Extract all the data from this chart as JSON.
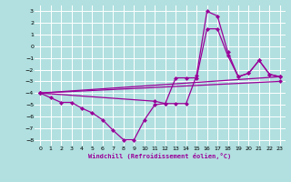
{
  "xlabel": "Windchill (Refroidissement éolien,°C)",
  "bg_color": "#b2e0e0",
  "grid_color": "#ffffff",
  "line_color": "#990099",
  "xlim": [
    -0.5,
    23.5
  ],
  "ylim": [
    -8.5,
    3.5
  ],
  "xticks": [
    0,
    1,
    2,
    3,
    4,
    5,
    6,
    7,
    8,
    9,
    10,
    11,
    12,
    13,
    14,
    15,
    16,
    17,
    18,
    19,
    20,
    21,
    22,
    23
  ],
  "yticks": [
    -8,
    -7,
    -6,
    -5,
    -4,
    -3,
    -2,
    -1,
    0,
    1,
    2,
    3
  ],
  "line1_x": [
    0,
    1,
    2,
    3,
    4,
    5,
    6,
    7,
    8,
    9,
    10,
    11,
    12,
    13,
    14,
    15,
    16,
    17,
    18,
    19,
    20,
    21,
    22,
    23
  ],
  "line1_y": [
    -4.0,
    -4.4,
    -4.8,
    -4.8,
    -5.3,
    -5.7,
    -6.3,
    -7.2,
    -8.0,
    -8.0,
    -6.3,
    -5.0,
    -4.9,
    -4.9,
    -4.9,
    -2.5,
    3.0,
    2.6,
    -0.5,
    -2.6,
    -2.3,
    -1.2,
    -2.4,
    -2.6
  ],
  "line2_x": [
    0,
    11,
    12,
    13,
    14,
    15,
    16,
    17,
    18,
    19,
    20,
    21,
    22,
    23
  ],
  "line2_y": [
    -4.0,
    -4.7,
    -4.9,
    -2.7,
    -2.7,
    -2.7,
    1.5,
    1.5,
    -0.8,
    -2.6,
    -2.3,
    -1.2,
    -2.4,
    -2.6
  ],
  "line3_x": [
    0,
    23
  ],
  "line3_y": [
    -4.0,
    -2.6
  ],
  "line4_x": [
    0,
    23
  ],
  "line4_y": [
    -4.0,
    -3.0
  ]
}
